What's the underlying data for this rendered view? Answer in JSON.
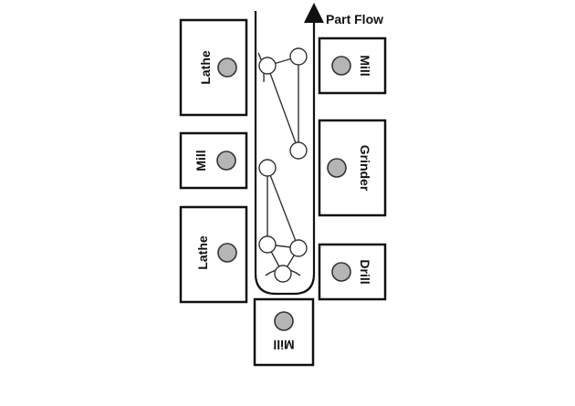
{
  "diagram": {
    "flow_label": "Part Flow",
    "machines": {
      "left_top": "Lathe",
      "left_mid": "Mill",
      "left_bottom": "Lathe",
      "right_top": "Mill",
      "right_mid": "Grinder",
      "right_bottom": "Drill",
      "bottom": "Mill"
    },
    "colors": {
      "outline": "#111111",
      "spindle_fill": "#b5b5b5",
      "background": "#ffffff"
    }
  }
}
